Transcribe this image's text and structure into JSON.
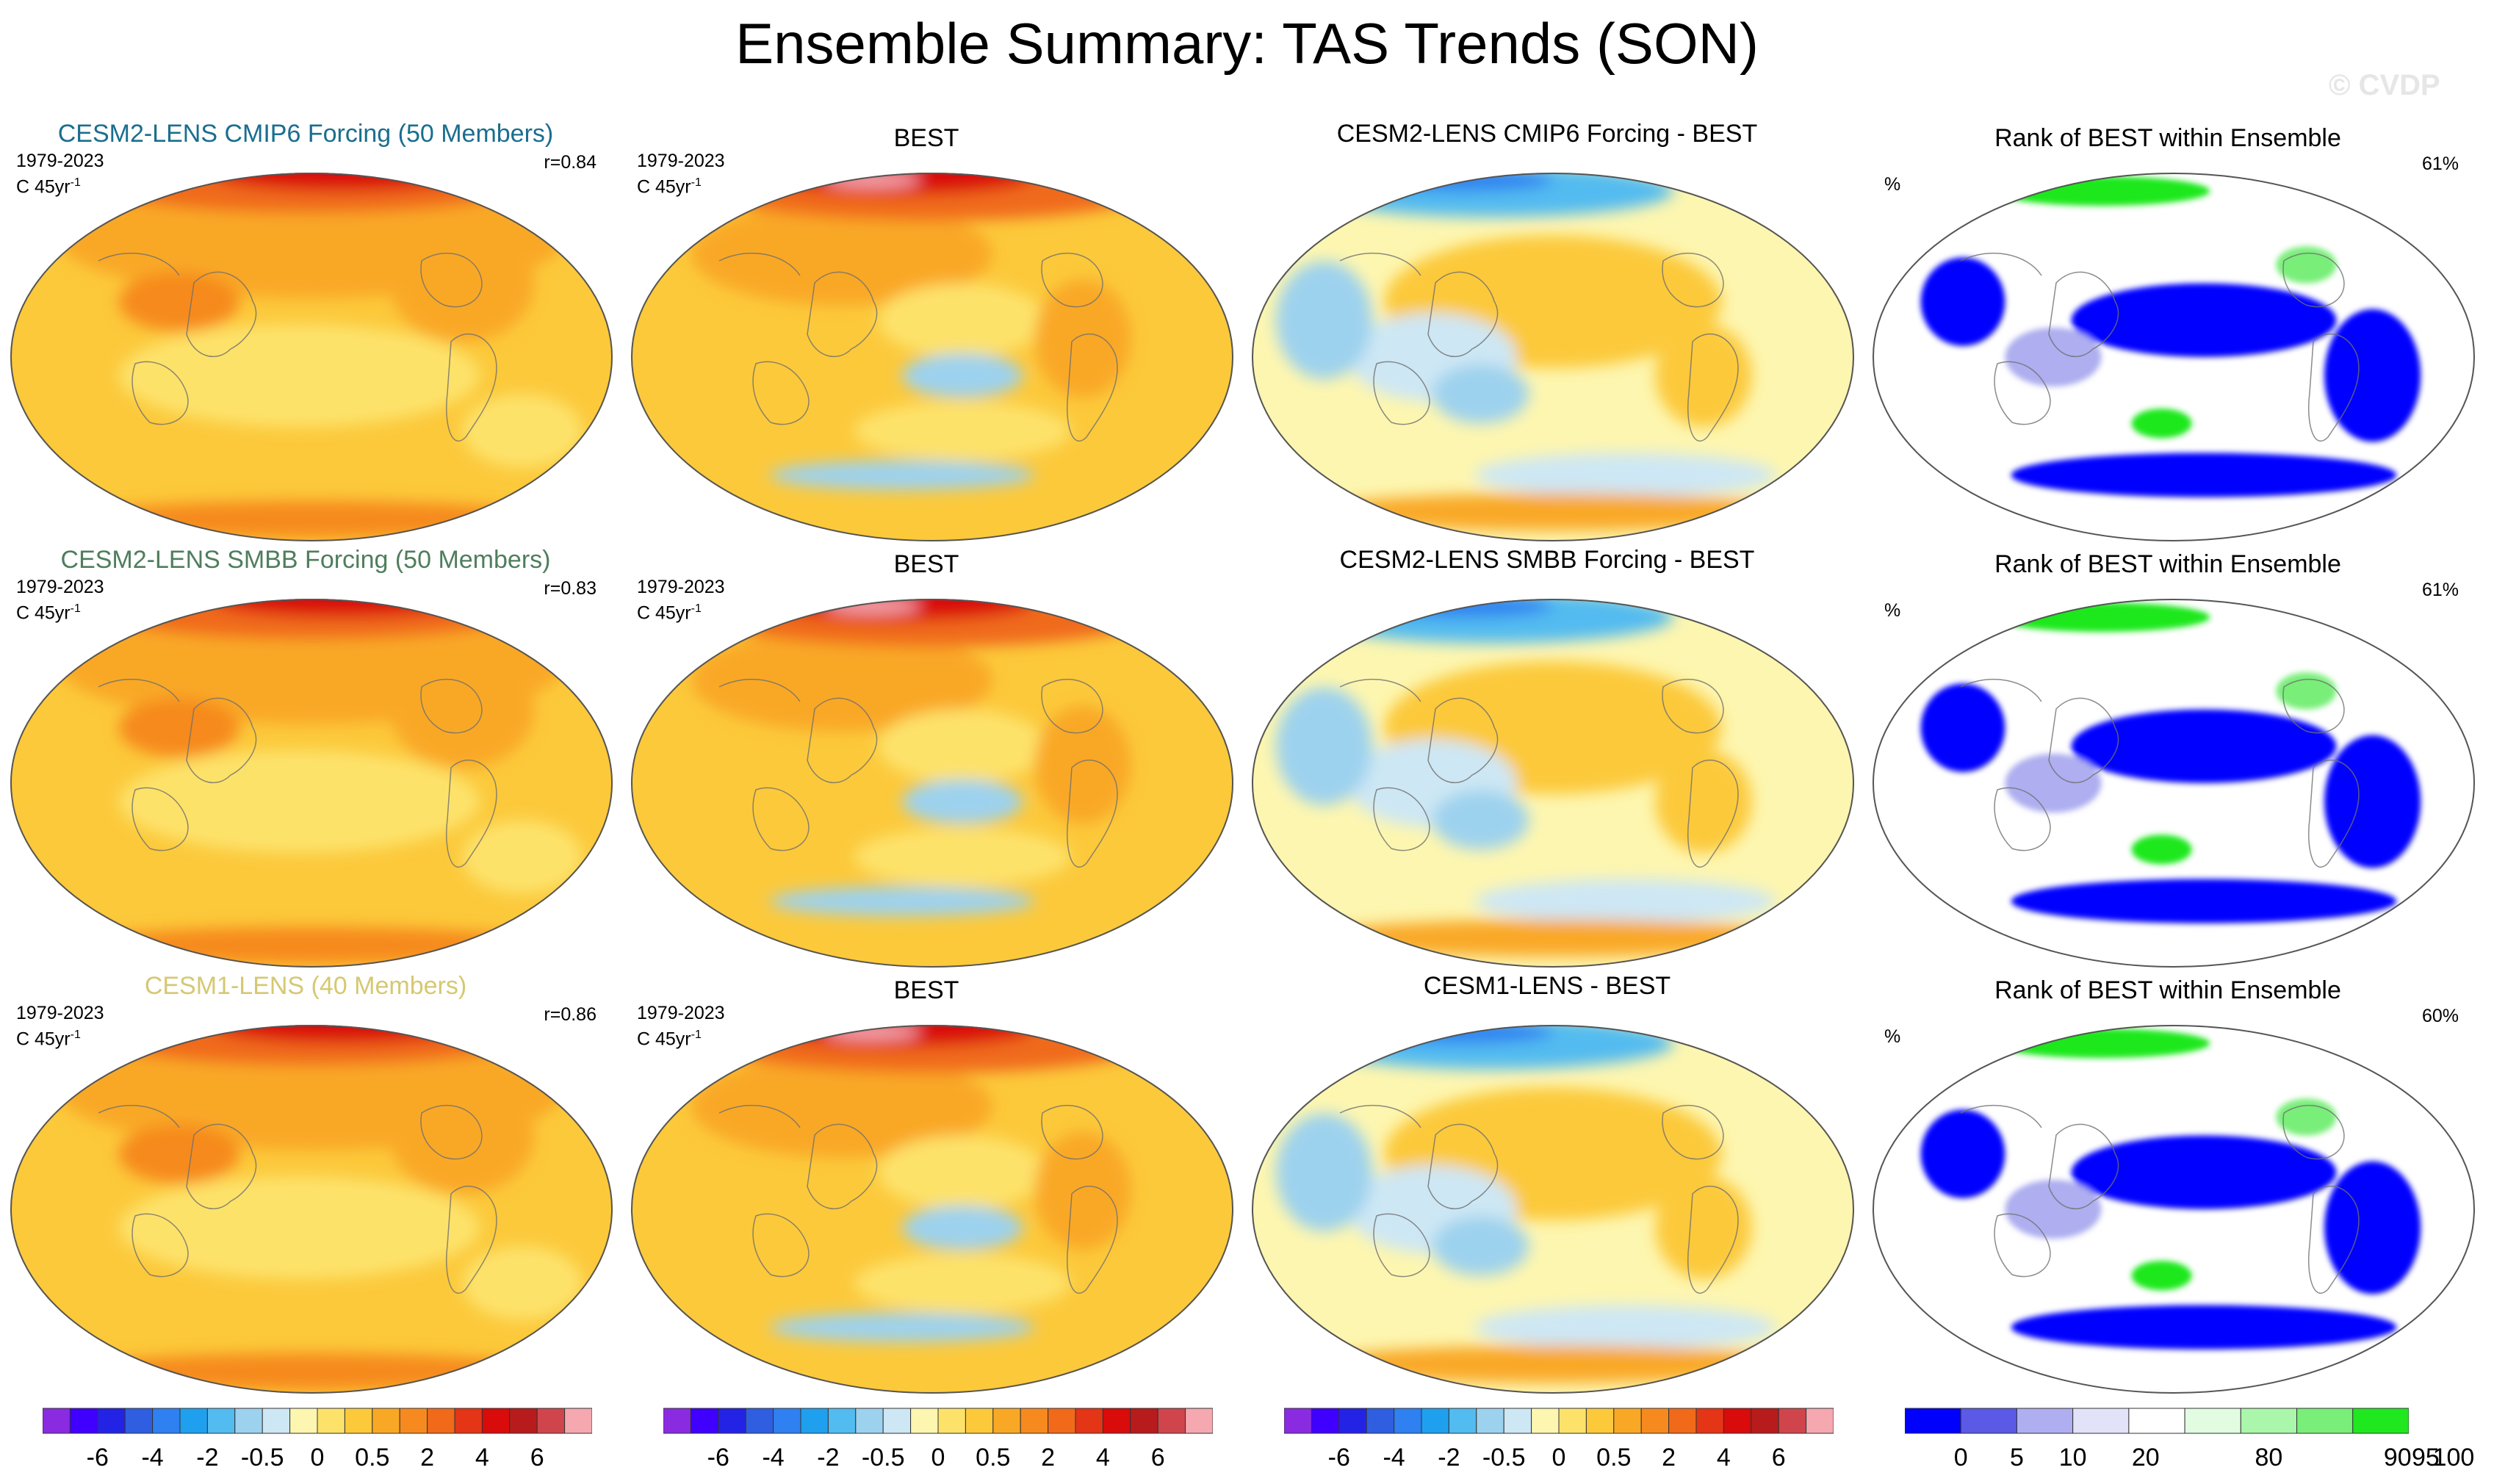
{
  "title": "Ensemble Summary: TAS Trends (SON)",
  "watermark": "© CVDP",
  "rows": [
    {
      "model": {
        "title": "CESM2-LENS CMIP6 Forcing (50 Members)",
        "title_color": "#1a6e8f",
        "period": "1979-2023",
        "units": "C 45yr",
        "units_sup": "-1",
        "r": "r=0.84"
      },
      "obs": {
        "title": "BEST",
        "period": "1979-2023",
        "units": "C 45yr",
        "units_sup": "-1"
      },
      "diff": {
        "title": "CESM2-LENS CMIP6 Forcing - BEST"
      },
      "rank": {
        "title": "Rank of BEST within Ensemble",
        "pct_label": "%",
        "pct_value": "61%"
      }
    },
    {
      "model": {
        "title": "CESM2-LENS SMBB Forcing (50 Members)",
        "title_color": "#4f7e5c",
        "period": "1979-2023",
        "units": "C 45yr",
        "units_sup": "-1",
        "r": "r=0.83"
      },
      "obs": {
        "title": "BEST",
        "period": "1979-2023",
        "units": "C 45yr",
        "units_sup": "-1"
      },
      "diff": {
        "title": "CESM2-LENS SMBB Forcing - BEST"
      },
      "rank": {
        "title": "Rank of BEST within Ensemble",
        "pct_label": "%",
        "pct_value": "61%"
      }
    },
    {
      "model": {
        "title": "CESM1-LENS (40 Members)",
        "title_color": "#d6c872",
        "period": "1979-2023",
        "units": "C 45yr",
        "units_sup": "-1",
        "r": "r=0.86"
      },
      "obs": {
        "title": "BEST",
        "period": "1979-2023",
        "units": "C 45yr",
        "units_sup": "-1"
      },
      "diff": {
        "title": "CESM1-LENS - BEST"
      },
      "rank": {
        "title": "Rank of BEST within Ensemble",
        "pct_label": "%",
        "pct_value": "60%"
      }
    }
  ],
  "colorbar_trend": {
    "colors": [
      "#8a2be2",
      "#3f00ff",
      "#2323e6",
      "#2f5fe0",
      "#2f80f0",
      "#1ea0ef",
      "#52bbf0",
      "#9dd2ee",
      "#cde7f4",
      "#fdf6b0",
      "#fde26a",
      "#fcc93b",
      "#f9a825",
      "#f68a1e",
      "#f06a1a",
      "#e43516",
      "#d90b0b",
      "#b81b1b",
      "#d0454c",
      "#f5a8b0"
    ],
    "ticks": [
      "-6",
      "-4",
      "-2",
      "-0.5",
      "0",
      "0.5",
      "2",
      "4",
      "6"
    ]
  },
  "colorbar_rank": {
    "colors": [
      "#0000ff",
      "#5a5ae6",
      "#aeaef0",
      "#e2e2f8",
      "#ffffff",
      "#e2fce2",
      "#aaf6aa",
      "#79ee79",
      "#1fe81f"
    ],
    "ticks": [
      "0",
      "5",
      "10",
      "20",
      "80",
      "90",
      "95",
      "100"
    ]
  }
}
